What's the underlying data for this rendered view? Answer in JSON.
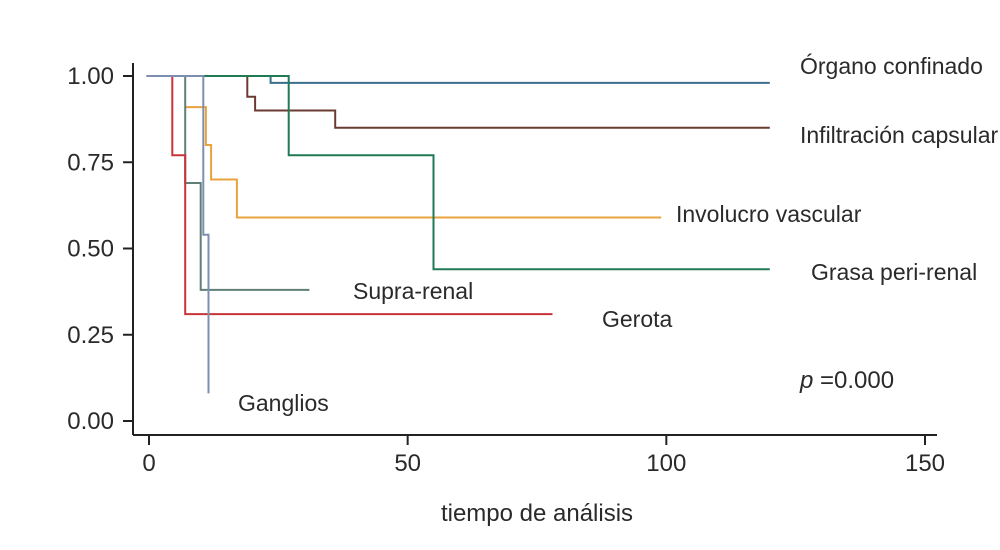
{
  "chart_data": {
    "type": "line",
    "title": "",
    "xlabel": "tiempo de análisis",
    "ylabel": "",
    "xlim": [
      0,
      150
    ],
    "ylim": [
      0,
      1
    ],
    "xticks": [
      "0",
      "50",
      "100",
      "150"
    ],
    "yticks": [
      "0.00",
      "0.25",
      "0.50",
      "0.75",
      "1.00"
    ],
    "grid": false,
    "annotation": {
      "p": "p",
      "rest": " =0.000"
    },
    "series": [
      {
        "name": "Órgano confinado",
        "color": "#3b6e8c",
        "points": [
          [
            -0.5,
            1.0
          ],
          [
            23.5,
            1.0
          ],
          [
            23.5,
            0.98
          ],
          [
            120,
            0.98
          ]
        ]
      },
      {
        "name": "Infiltración capsular",
        "color": "#6b3a33",
        "points": [
          [
            19,
            1.0
          ],
          [
            19,
            0.94
          ],
          [
            20.5,
            0.94
          ],
          [
            20.5,
            0.9
          ],
          [
            36,
            0.9
          ],
          [
            36,
            0.85
          ],
          [
            120,
            0.85
          ]
        ]
      },
      {
        "name": "Involucro vascular",
        "color": "#e8a33c",
        "points": [
          [
            7,
            0.91
          ],
          [
            11,
            0.91
          ],
          [
            11,
            0.8
          ],
          [
            12,
            0.8
          ],
          [
            12,
            0.7
          ],
          [
            17,
            0.7
          ],
          [
            17,
            0.59
          ],
          [
            99,
            0.59
          ]
        ]
      },
      {
        "name": "Grasa peri-renal",
        "color": "#1f7a55",
        "points": [
          [
            10,
            1.0
          ],
          [
            27,
            1.0
          ],
          [
            27,
            0.77
          ],
          [
            55,
            0.77
          ],
          [
            55,
            0.44
          ],
          [
            120,
            0.44
          ]
        ]
      },
      {
        "name": "Supra-renal",
        "color": "#5f7f77",
        "points": [
          [
            7,
            1.0
          ],
          [
            7,
            0.69
          ],
          [
            10,
            0.69
          ],
          [
            10,
            0.38
          ],
          [
            31,
            0.38
          ]
        ]
      },
      {
        "name": "Gerota",
        "color": "#c8343a",
        "points": [
          [
            4.5,
            1.0
          ],
          [
            4.5,
            0.77
          ],
          [
            7,
            0.77
          ],
          [
            7,
            0.31
          ],
          [
            78,
            0.31
          ]
        ]
      },
      {
        "name": "Ganglios",
        "color": "#7d8fb0",
        "points": [
          [
            -0.5,
            1.0
          ],
          [
            10.5,
            1.0
          ],
          [
            10.5,
            0.54
          ],
          [
            11.5,
            0.54
          ],
          [
            11.5,
            0.08
          ]
        ]
      }
    ]
  }
}
